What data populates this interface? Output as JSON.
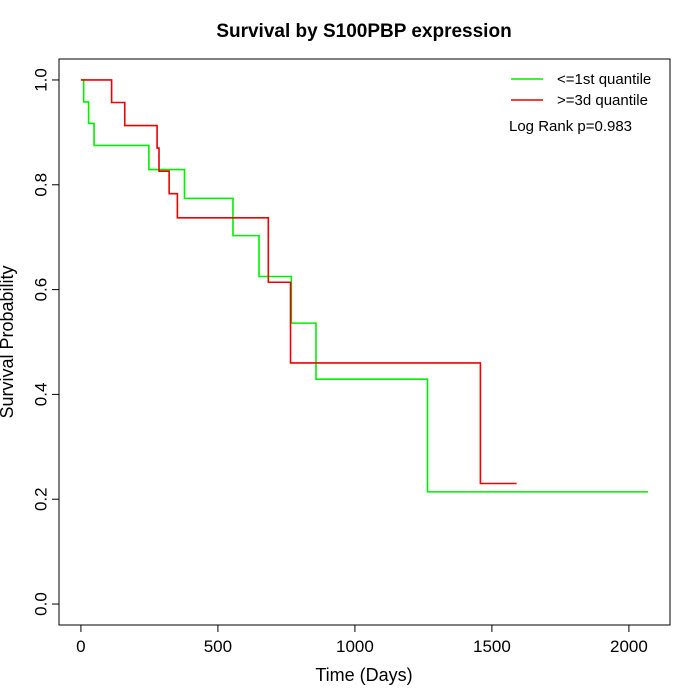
{
  "chart_data": {
    "type": "line",
    "title": "Survival by S100PBP expression",
    "xlabel": "Time (Days)",
    "ylabel": "Survival Probability",
    "xlim": [
      -80,
      2150
    ],
    "ylim": [
      -0.04,
      1.04
    ],
    "xticks": [
      0,
      500,
      1000,
      1500,
      2000
    ],
    "yticks": [
      0.0,
      0.2,
      0.4,
      0.6,
      0.8,
      1.0
    ],
    "xtick_labels": [
      "0",
      "500",
      "1000",
      "1500",
      "2000"
    ],
    "ytick_labels": [
      "0.0",
      "0.2",
      "0.4",
      "0.6",
      "0.8",
      "1.0"
    ],
    "grid": false,
    "legend_position": "top-right",
    "annotation": "Log Rank p=0.983",
    "series": [
      {
        "name": "<=1st quantile",
        "color": "#00ee00",
        "steps": [
          [
            5,
            1.0
          ],
          [
            10,
            0.958
          ],
          [
            28,
            0.917
          ],
          [
            48,
            0.875
          ],
          [
            248,
            0.829
          ],
          [
            378,
            0.774
          ],
          [
            555,
            0.703
          ],
          [
            650,
            0.625
          ],
          [
            768,
            0.536
          ],
          [
            858,
            0.429
          ],
          [
            1265,
            0.214
          ],
          [
            2070,
            0.214
          ]
        ]
      },
      {
        "name": ">=3d quantile",
        "color": "#ee0000",
        "steps": [
          [
            0,
            1.0
          ],
          [
            112,
            0.957
          ],
          [
            160,
            0.913
          ],
          [
            278,
            0.87
          ],
          [
            285,
            0.826
          ],
          [
            322,
            0.783
          ],
          [
            352,
            0.737
          ],
          [
            684,
            0.614
          ],
          [
            765,
            0.46
          ],
          [
            1458,
            0.23
          ],
          [
            1590,
            0.23
          ]
        ]
      }
    ]
  }
}
